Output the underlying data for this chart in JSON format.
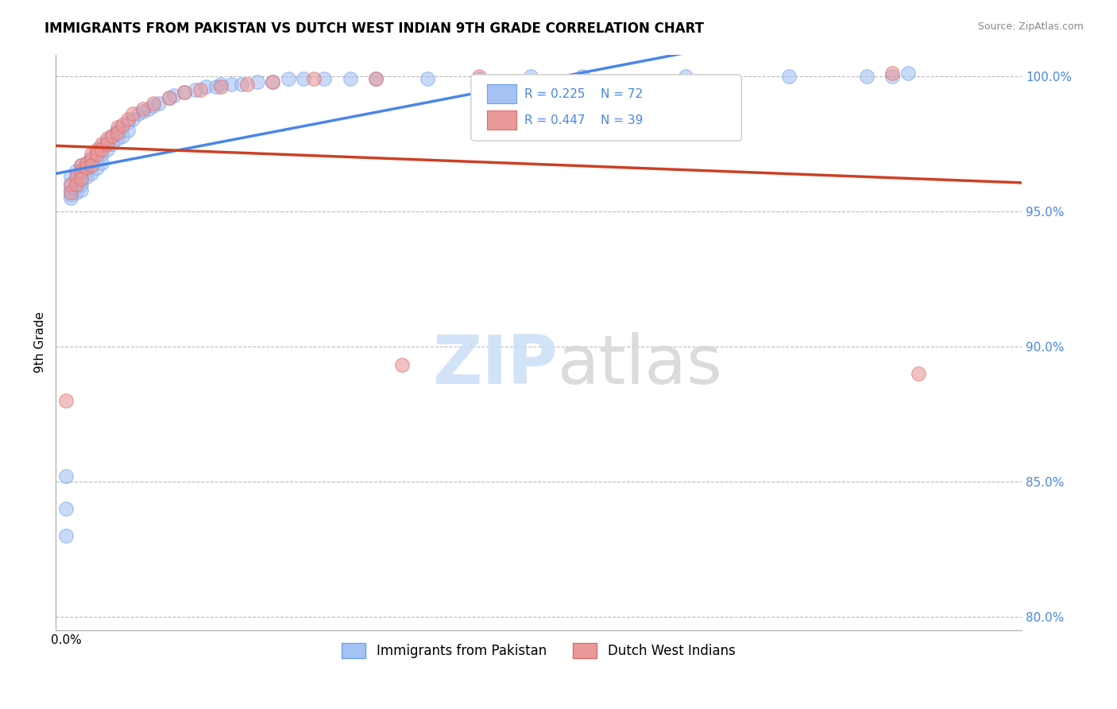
{
  "title": "IMMIGRANTS FROM PAKISTAN VS DUTCH WEST INDIAN 9TH GRADE CORRELATION CHART",
  "source": "Source: ZipAtlas.com",
  "ylabel": "9th Grade",
  "ylim": [
    0.795,
    1.008
  ],
  "xlim": [
    -0.002,
    0.185
  ],
  "yticks": [
    0.8,
    0.85,
    0.9,
    0.95,
    1.0
  ],
  "ytick_labels": [
    "80.0%",
    "85.0%",
    "90.0%",
    "95.0%",
    "100.0%"
  ],
  "xtick_labels": [
    "0.0%"
  ],
  "blue_fill": "#a4c2f4",
  "blue_edge": "#6d9eeb",
  "pink_fill": "#ea9999",
  "pink_edge": "#e06666",
  "blue_line": "#4a86e8",
  "pink_line": "#cc4125",
  "legend_R_blue": "R = 0.225",
  "legend_N_blue": "N = 72",
  "legend_R_pink": "R = 0.447",
  "legend_N_pink": "N = 39",
  "background_color": "#ffffff",
  "grid_color": "#bbbbbb",
  "tick_color": "#4a86e8",
  "blue_x": [
    0.0,
    0.0,
    0.0,
    0.001,
    0.001,
    0.001,
    0.001,
    0.001,
    0.002,
    0.002,
    0.002,
    0.002,
    0.003,
    0.003,
    0.003,
    0.003,
    0.003,
    0.003,
    0.004,
    0.004,
    0.004,
    0.004,
    0.005,
    0.005,
    0.005,
    0.006,
    0.006,
    0.006,
    0.007,
    0.007,
    0.007,
    0.008,
    0.008,
    0.009,
    0.009,
    0.01,
    0.01,
    0.011,
    0.011,
    0.012,
    0.012,
    0.013,
    0.014,
    0.015,
    0.016,
    0.017,
    0.018,
    0.02,
    0.021,
    0.023,
    0.025,
    0.027,
    0.029,
    0.03,
    0.032,
    0.034,
    0.037,
    0.04,
    0.043,
    0.046,
    0.05,
    0.055,
    0.06,
    0.07,
    0.08,
    0.09,
    0.1,
    0.12,
    0.14,
    0.155,
    0.16,
    0.163
  ],
  "blue_y": [
    0.84,
    0.852,
    0.83,
    0.963,
    0.958,
    0.956,
    0.96,
    0.955,
    0.965,
    0.962,
    0.959,
    0.957,
    0.967,
    0.964,
    0.961,
    0.963,
    0.958,
    0.96,
    0.968,
    0.965,
    0.963,
    0.966,
    0.97,
    0.967,
    0.964,
    0.972,
    0.969,
    0.966,
    0.974,
    0.971,
    0.968,
    0.976,
    0.973,
    0.978,
    0.975,
    0.98,
    0.977,
    0.981,
    0.978,
    0.983,
    0.98,
    0.984,
    0.986,
    0.987,
    0.988,
    0.989,
    0.99,
    0.992,
    0.993,
    0.994,
    0.995,
    0.996,
    0.996,
    0.997,
    0.997,
    0.997,
    0.998,
    0.998,
    0.999,
    0.999,
    0.999,
    0.999,
    0.999,
    0.999,
    0.999,
    1.0,
    1.0,
    1.0,
    1.0,
    1.0,
    1.0,
    1.001
  ],
  "pink_x": [
    0.0,
    0.001,
    0.001,
    0.002,
    0.002,
    0.003,
    0.003,
    0.003,
    0.004,
    0.004,
    0.005,
    0.005,
    0.005,
    0.006,
    0.006,
    0.007,
    0.007,
    0.008,
    0.008,
    0.009,
    0.01,
    0.01,
    0.011,
    0.012,
    0.013,
    0.015,
    0.017,
    0.02,
    0.023,
    0.026,
    0.03,
    0.035,
    0.04,
    0.048,
    0.06,
    0.065,
    0.08,
    0.16,
    0.165
  ],
  "pink_y": [
    0.88,
    0.96,
    0.957,
    0.963,
    0.96,
    0.967,
    0.965,
    0.962,
    0.968,
    0.966,
    0.971,
    0.969,
    0.967,
    0.973,
    0.971,
    0.975,
    0.973,
    0.977,
    0.975,
    0.978,
    0.981,
    0.979,
    0.982,
    0.984,
    0.986,
    0.988,
    0.99,
    0.992,
    0.994,
    0.995,
    0.996,
    0.997,
    0.998,
    0.999,
    0.999,
    0.893,
    1.0,
    1.001,
    0.89
  ]
}
